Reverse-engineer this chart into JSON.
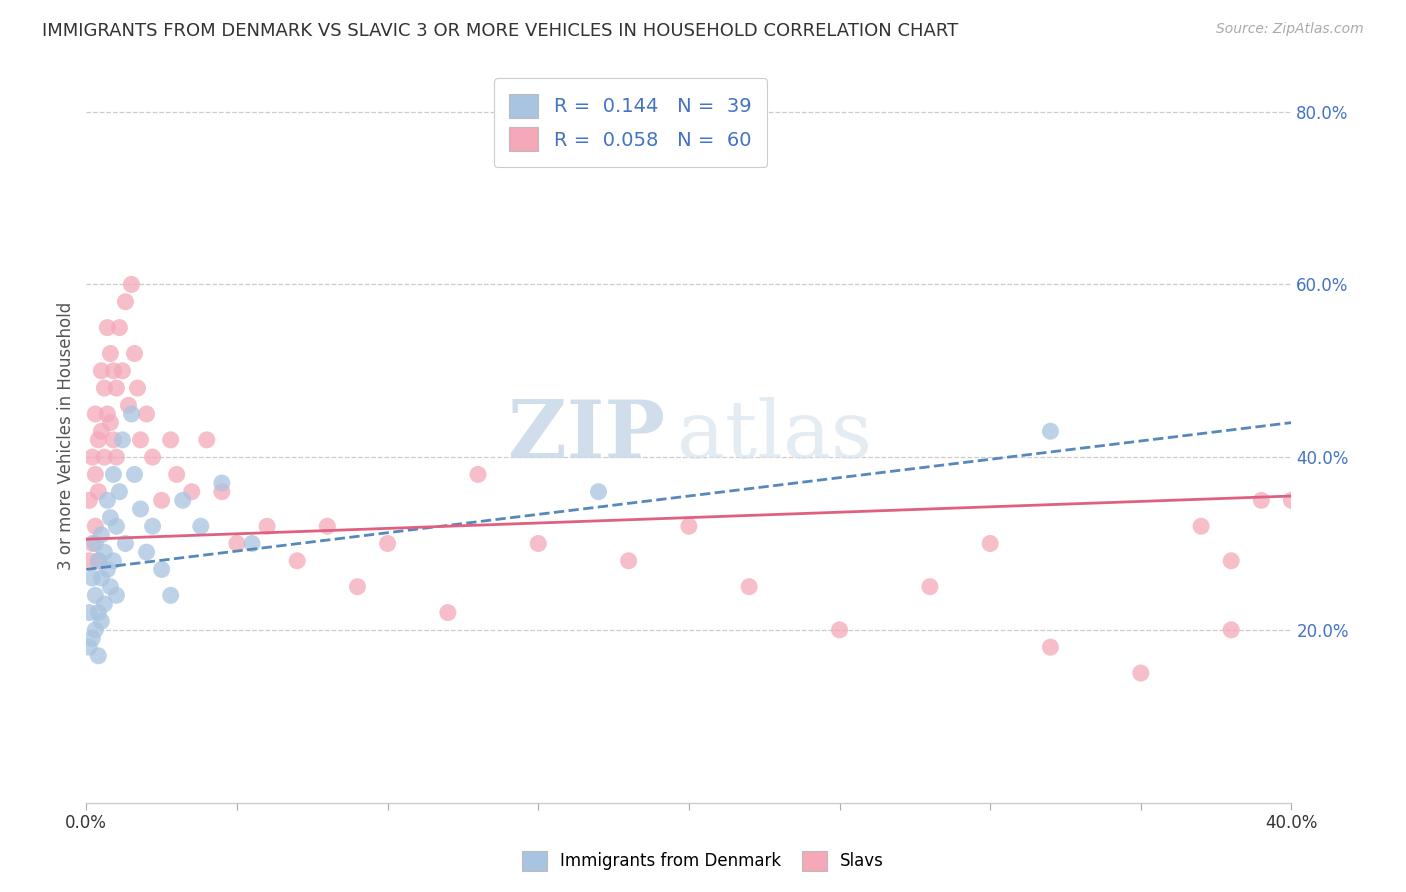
{
  "title": "IMMIGRANTS FROM DENMARK VS SLAVIC 3 OR MORE VEHICLES IN HOUSEHOLD CORRELATION CHART",
  "source": "Source: ZipAtlas.com",
  "ylabel": "3 or more Vehicles in Household",
  "legend_label_1": "Immigrants from Denmark",
  "legend_label_2": "Slavs",
  "r1": "0.144",
  "n1": "39",
  "r2": "0.058",
  "n2": "60",
  "color_denmark": "#a8c4e0",
  "color_slavs": "#f4a8b8",
  "color_text_blue": "#4472c4",
  "color_trend_denmark": "#5588bb",
  "color_trend_slavs": "#e06080",
  "watermark_zip": "ZIP",
  "watermark_atlas": "atlas",
  "background_color": "#ffffff",
  "xlim": [
    0.0,
    0.4
  ],
  "ylim": [
    0.0,
    0.85
  ],
  "yticks_right": [
    0.2,
    0.4,
    0.6,
    0.8
  ],
  "ytick_labels_right": [
    "20.0%",
    "40.0%",
    "60.0%",
    "80.0%"
  ],
  "xtick_vals": [
    0.0,
    0.05,
    0.1,
    0.15,
    0.2,
    0.25,
    0.3,
    0.35,
    0.4
  ],
  "denmark_x": [
    0.001,
    0.001,
    0.002,
    0.002,
    0.003,
    0.003,
    0.003,
    0.004,
    0.004,
    0.004,
    0.005,
    0.005,
    0.005,
    0.006,
    0.006,
    0.007,
    0.007,
    0.008,
    0.008,
    0.009,
    0.009,
    0.01,
    0.01,
    0.011,
    0.012,
    0.013,
    0.015,
    0.016,
    0.018,
    0.02,
    0.022,
    0.025,
    0.028,
    0.032,
    0.038,
    0.045,
    0.055,
    0.17,
    0.32
  ],
  "denmark_y": [
    0.22,
    0.18,
    0.26,
    0.19,
    0.3,
    0.24,
    0.2,
    0.28,
    0.22,
    0.17,
    0.31,
    0.26,
    0.21,
    0.29,
    0.23,
    0.35,
    0.27,
    0.33,
    0.25,
    0.38,
    0.28,
    0.32,
    0.24,
    0.36,
    0.42,
    0.3,
    0.45,
    0.38,
    0.34,
    0.29,
    0.32,
    0.27,
    0.24,
    0.35,
    0.32,
    0.37,
    0.3,
    0.36,
    0.43
  ],
  "slavs_x": [
    0.001,
    0.001,
    0.002,
    0.002,
    0.003,
    0.003,
    0.003,
    0.004,
    0.004,
    0.004,
    0.005,
    0.005,
    0.006,
    0.006,
    0.007,
    0.007,
    0.008,
    0.008,
    0.009,
    0.009,
    0.01,
    0.01,
    0.011,
    0.012,
    0.013,
    0.014,
    0.015,
    0.016,
    0.017,
    0.018,
    0.02,
    0.022,
    0.025,
    0.028,
    0.03,
    0.035,
    0.04,
    0.045,
    0.05,
    0.06,
    0.07,
    0.08,
    0.09,
    0.1,
    0.12,
    0.13,
    0.15,
    0.18,
    0.2,
    0.22,
    0.25,
    0.28,
    0.3,
    0.32,
    0.35,
    0.37,
    0.38,
    0.38,
    0.39,
    0.4
  ],
  "slavs_y": [
    0.35,
    0.28,
    0.4,
    0.3,
    0.45,
    0.38,
    0.32,
    0.42,
    0.36,
    0.28,
    0.5,
    0.43,
    0.48,
    0.4,
    0.55,
    0.45,
    0.52,
    0.44,
    0.5,
    0.42,
    0.48,
    0.4,
    0.55,
    0.5,
    0.58,
    0.46,
    0.6,
    0.52,
    0.48,
    0.42,
    0.45,
    0.4,
    0.35,
    0.42,
    0.38,
    0.36,
    0.42,
    0.36,
    0.3,
    0.32,
    0.28,
    0.32,
    0.25,
    0.3,
    0.22,
    0.38,
    0.3,
    0.28,
    0.32,
    0.25,
    0.2,
    0.25,
    0.3,
    0.18,
    0.15,
    0.32,
    0.2,
    0.28,
    0.35,
    0.35
  ]
}
